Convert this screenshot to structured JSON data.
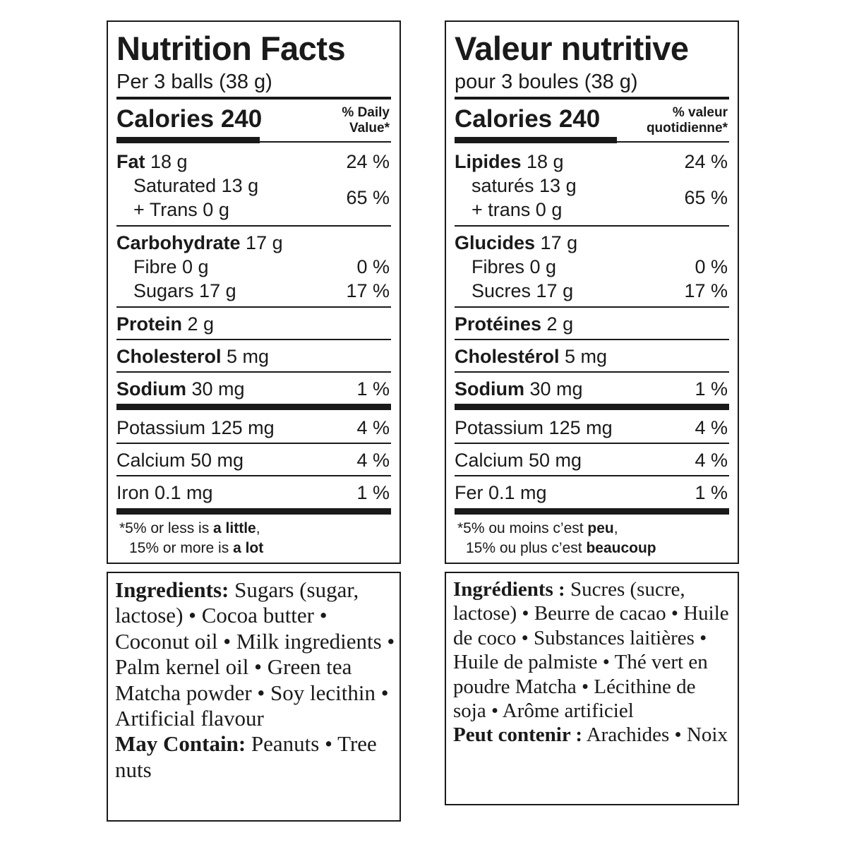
{
  "english": {
    "title": "Nutrition Facts",
    "serving": "Per 3 balls (38 g)",
    "calories_label": "Calories 240",
    "dv_line1": "% Daily",
    "dv_line2": "Value*",
    "fat_label": "Fat",
    "fat_amount": " 18 g",
    "fat_pct": "24 %",
    "saturated": "Saturated 13 g",
    "trans": "+ Trans 0 g",
    "sat_trans_pct": "65 %",
    "carb_label": "Carbohydrate",
    "carb_amount": " 17 g",
    "fibre": "Fibre 0 g",
    "fibre_pct": "0 %",
    "sugars": "Sugars 17 g",
    "sugars_pct": "17 %",
    "protein_label": "Protein",
    "protein_amount": " 2 g",
    "chol_label": "Cholesterol",
    "chol_amount": " 5 mg",
    "sodium_label": "Sodium",
    "sodium_amount": " 30 mg",
    "sodium_pct": "1 %",
    "potassium": "Potassium 125 mg",
    "potassium_pct": "4 %",
    "calcium": "Calcium 50 mg",
    "calcium_pct": "4 %",
    "iron": "Iron 0.1 mg",
    "iron_pct": "1 %",
    "foot1_a": "*5% or less is ",
    "foot1_b": "a little",
    "foot2_a": "15% or more is ",
    "foot2_b": "a lot",
    "ingredients_label": "Ingredients:",
    "ingredients_text": " Sugars (sugar, lactose) • Cocoa butter • Coconut oil • Milk ingredients • Palm kernel oil • Green tea Matcha powder • Soy lecithin • Artificial flavour",
    "may_contain_label": "May Contain:",
    "may_contain_text": " Peanuts • Tree nuts"
  },
  "french": {
    "title": "Valeur nutritive",
    "serving": "pour 3 boules (38 g)",
    "calories_label": "Calories 240",
    "dv_line1": "% valeur",
    "dv_line2": "quotidienne*",
    "fat_label": "Lipides",
    "fat_amount": " 18 g",
    "fat_pct": "24 %",
    "saturated": "saturés 13 g",
    "trans": "+ trans 0 g",
    "sat_trans_pct": "65 %",
    "carb_label": "Glucides",
    "carb_amount": " 17 g",
    "fibre": "Fibres 0 g",
    "fibre_pct": "0 %",
    "sugars": "Sucres 17 g",
    "sugars_pct": "17 %",
    "protein_label": "Protéines",
    "protein_amount": " 2 g",
    "chol_label": "Cholestérol",
    "chol_amount": " 5 mg",
    "sodium_label": "Sodium",
    "sodium_amount": " 30 mg",
    "sodium_pct": "1 %",
    "potassium": "Potassium 125 mg",
    "potassium_pct": "4 %",
    "calcium": "Calcium 50 mg",
    "calcium_pct": "4 %",
    "iron": "Fer 0.1 mg",
    "iron_pct": "1 %",
    "foot1_a": "*5% ou moins c’est ",
    "foot1_b": "peu",
    "foot2_a": "15% ou plus c’est ",
    "foot2_b": "beaucoup",
    "ingredients_label": "Ingrédients :",
    "ingredients_text": " Sucres (sucre, lactose) • Beurre de cacao • Huile de coco • Substances laitières • Huile de palmiste • Thé vert en poudre Matcha • Lécithine de soja • Arôme artificiel",
    "may_contain_label": "Peut contenir :",
    "may_contain_text": " Arachides • Noix"
  }
}
